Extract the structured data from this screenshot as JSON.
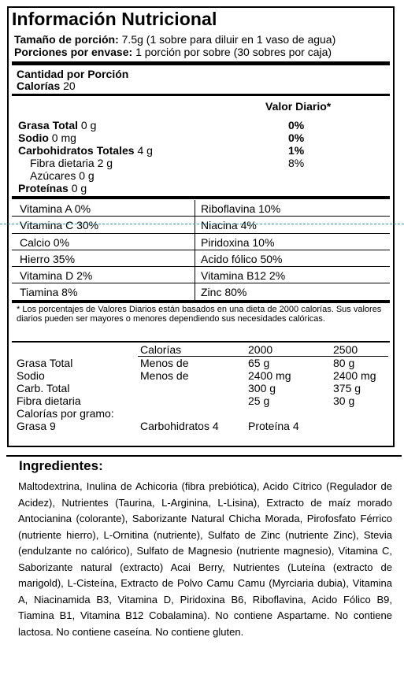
{
  "title": "Información Nutricional",
  "serving": {
    "size_label": "Tamaño de porción:",
    "size_value": "7.5g (1 sobre para diluir en 1 vaso de agua)",
    "per_label": "Porciones por envase:",
    "per_value": "1 porción por sobre (30 sobres por caja)"
  },
  "amount": {
    "header": "Cantidad por Porción",
    "calories_label": "Calorías",
    "calories_value": "20"
  },
  "dv_header": "Valor Diario*",
  "nutrients": [
    {
      "label": "Grasa Total",
      "value": "0 g",
      "dv": "0%"
    },
    {
      "label": "Sodio",
      "value": "0 mg",
      "dv": "0%"
    },
    {
      "label": "Carbohidratos Totales",
      "value": "4 g",
      "dv": "1%"
    },
    {
      "label": "Fibra dietaria",
      "value": "2 g",
      "dv": "8%"
    },
    {
      "label": "Azúcares",
      "value": "0 g",
      "dv": ""
    },
    {
      "label": "Proteínas",
      "value": "0 g",
      "dv": ""
    }
  ],
  "vitamins_left": [
    "Vitamina A 0%",
    "Vitamina C 30%",
    "Calcio 0%",
    "Hierro 35%",
    "Vitamina D 2%",
    "Tiamina 8%"
  ],
  "vitamins_right": [
    "Riboflavina 10%",
    "Niacina 4%",
    "Piridoxina 10%",
    "Acido fólico 50%",
    "Vitamina B12 2%",
    "Zinc 80%"
  ],
  "footnote": "* Los porcentajes de Valores Diarios están basados en una dieta de 2000 calorías. Sus valores diarios pueden ser mayores o menores dependiendo sus necesidades calóricas.",
  "reference": {
    "header": [
      "Calorías",
      "2000",
      "2500"
    ],
    "rows": [
      [
        "Grasa Total",
        "Menos de",
        "65 g",
        "80 g"
      ],
      [
        "Sodio",
        "Menos de",
        "2400 mg",
        "2400 mg"
      ],
      [
        "Carb. Total",
        "",
        "300 g",
        "375 g"
      ],
      [
        "Fibra dietaria",
        "",
        "25 g",
        "30 g"
      ]
    ],
    "per_gram_label": "Calorías por gramo:",
    "per_gram": [
      "Grasa 9",
      "Carbohidratos 4",
      "Proteína 4"
    ]
  },
  "ingredients": {
    "title": "Ingredientes:",
    "text": "Maltodextrina, Inulina de Achicoria (fibra prebiótica), Acido Cítrico (Regulador de Acidez), Nutrientes (Taurina, L-Arginina, L-Lisina), Extracto de maíz morado Antocianina (colorante), Saborizante Natural Chicha Morada, Pirofosfato Férrico (nutriente hierro), L-Ornitina (nutriente), Sulfato de Zinc (nutriente Zinc), Stevia (endulzante no calórico), Sulfato de Magnesio (nutriente magnesio), Vitamina C, Saborizante natural (extracto) Acai Berry, Nutrientes (Luteína (extracto de marigold), L-Cisteína, Extracto de Polvo Camu Camu (Myrciaria dubia), Vitamina A, Niacinamida B3, Vitamina D, Piridoxina B6, Riboflavina, Acido Fólico B9, Tiamina B1, Vitamina B12 Cobalamina). No contiene Aspartame. No contiene lactosa. No contiene caseína. No contiene gluten."
  }
}
